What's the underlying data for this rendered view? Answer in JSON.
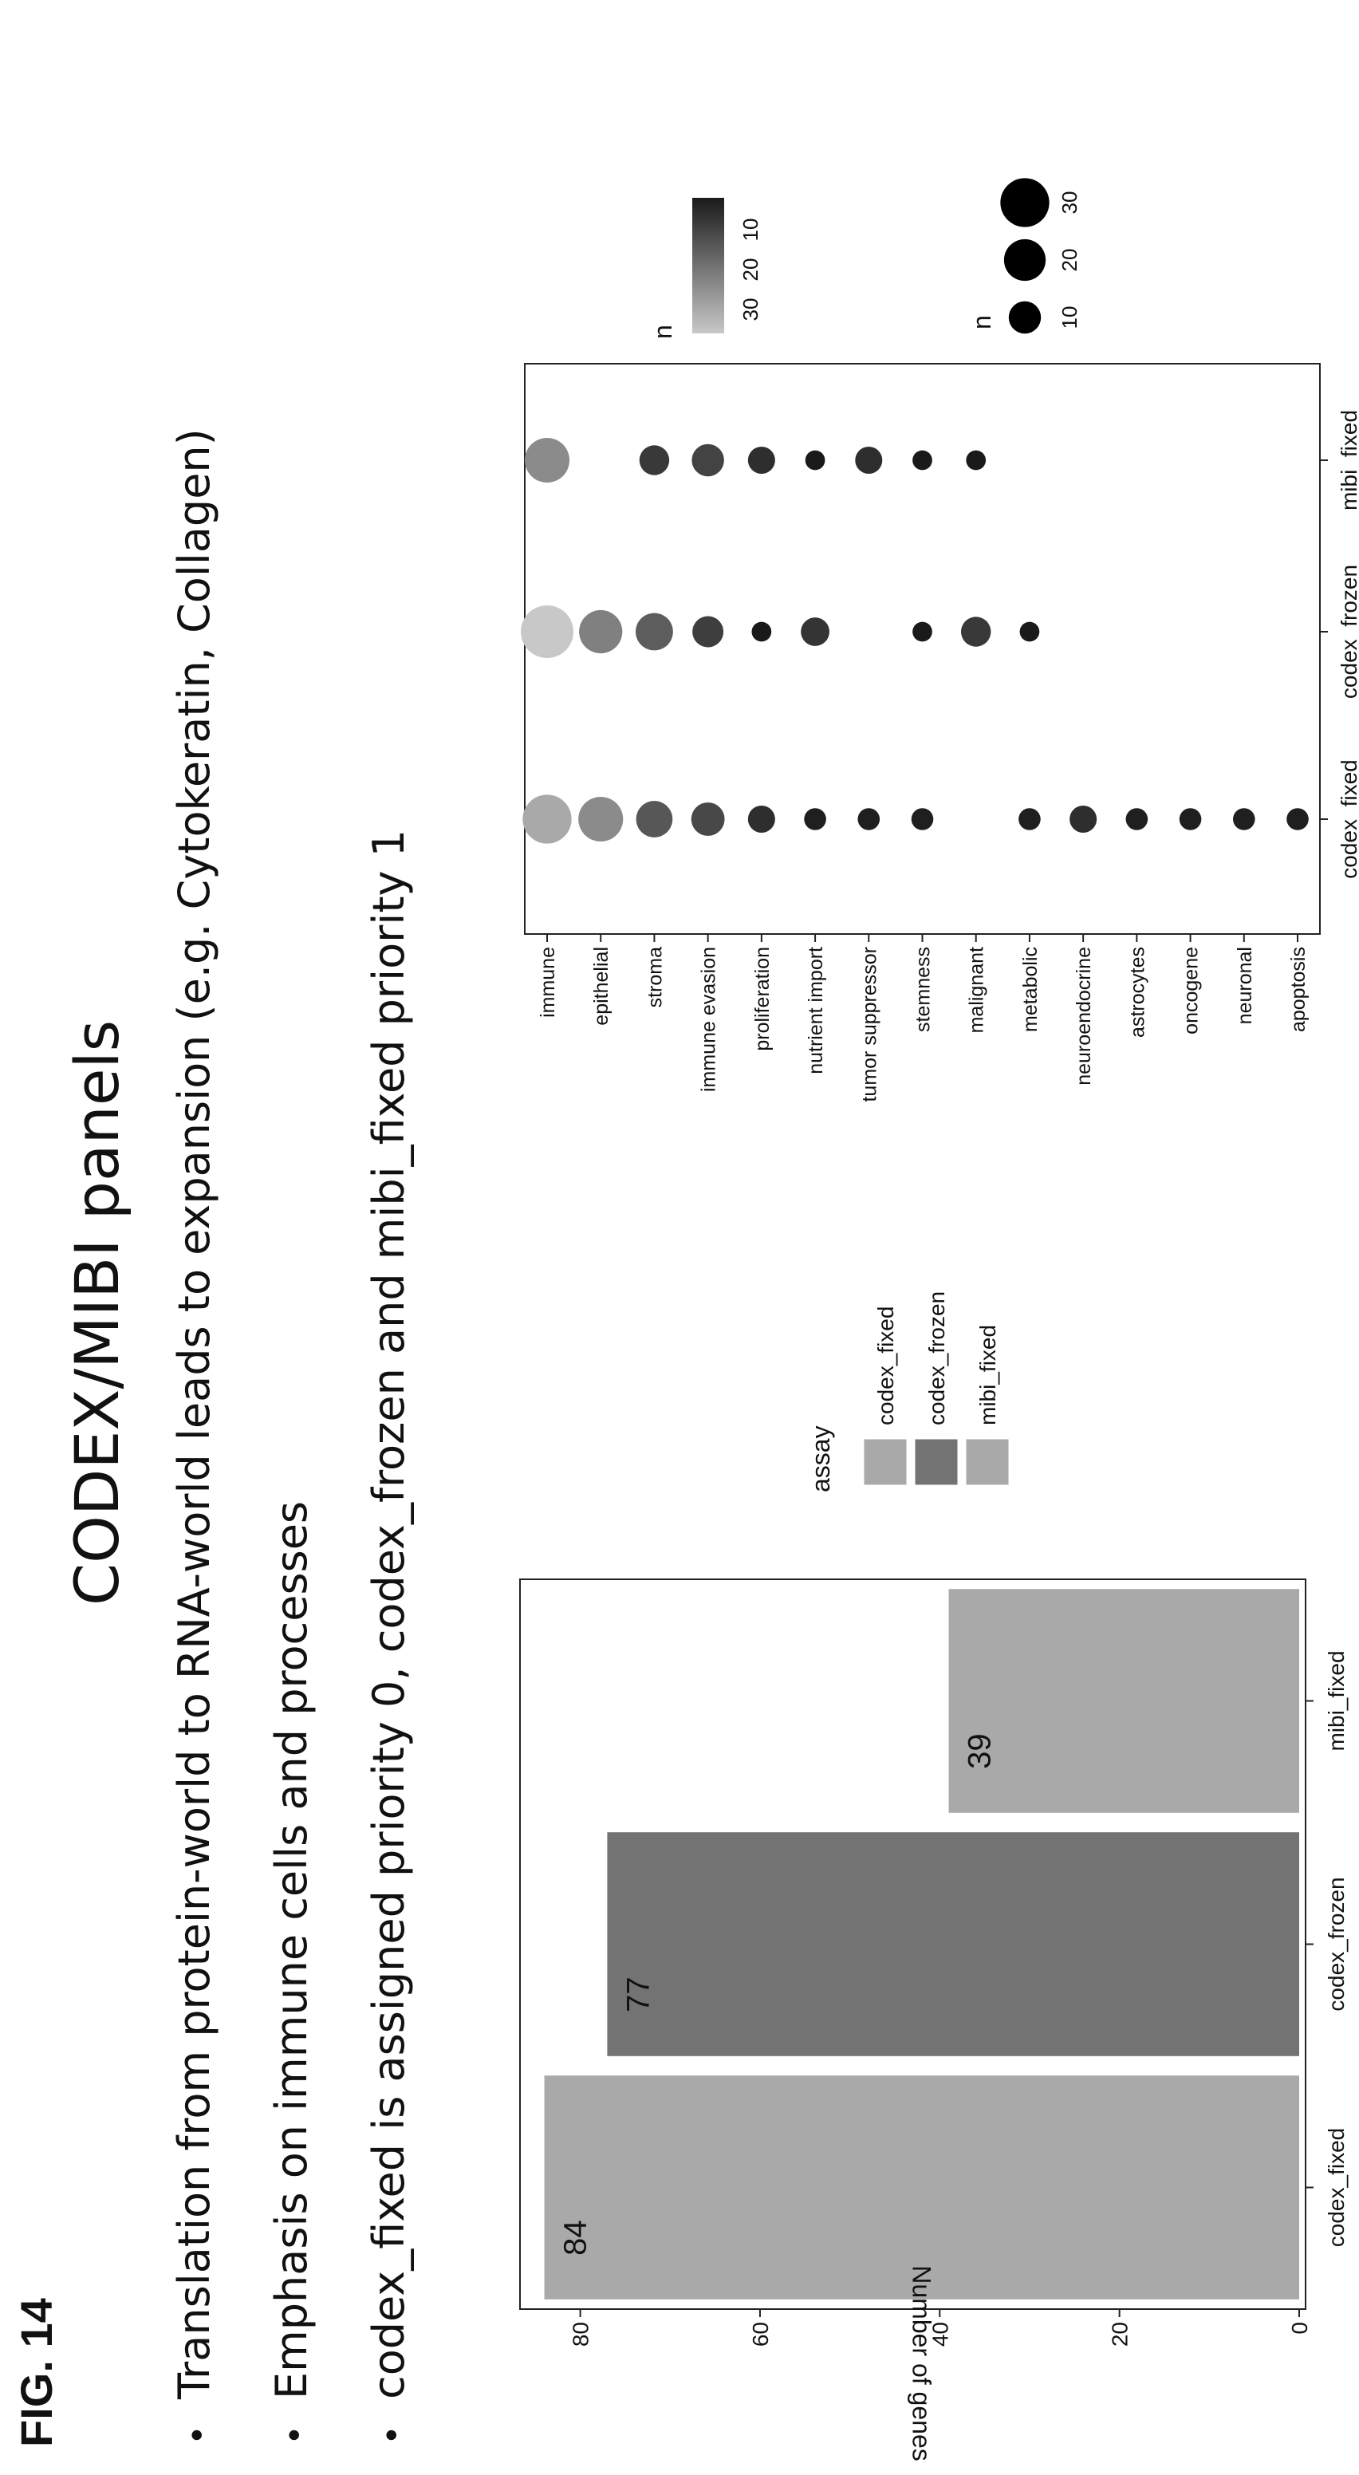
{
  "figure": {
    "label": "FIG. 14",
    "title": "CODEX/MIBI panels",
    "bullets": [
      "Translation from protein-world to RNA-world leads to expansion (e.g. Cytokeratin, Collagen)",
      "Emphasis on immune cells and processes",
      "codex_fixed is assigned priority 0, codex_frozen and mibi_fixed priority 1"
    ]
  },
  "chart_data": [
    {
      "type": "bar",
      "categories": [
        "codex_fixed",
        "codex_frozen",
        "mibi_fixed"
      ],
      "values": [
        84,
        77,
        39
      ],
      "data_labels": [
        "84",
        "77",
        "39"
      ],
      "ylabel": "Number of genes",
      "ylim": [
        0,
        86
      ],
      "yticks": [
        0,
        20,
        40,
        60,
        80
      ],
      "ytick_labels": [
        "0",
        "20",
        "40",
        "60",
        "80"
      ],
      "colors": [
        "#a9a9a9",
        "#737373",
        "#a9a9a9"
      ],
      "legend": {
        "title": "assay",
        "entries": [
          "codex_fixed",
          "codex_frozen",
          "mibi_fixed"
        ],
        "colors": [
          "#a9a9a9",
          "#737373",
          "#a9a9a9"
        ],
        "placement": "right"
      }
    },
    {
      "type": "scatter",
      "x_categories": [
        "codex_fixed",
        "codex_frozen",
        "mibi_fixed"
      ],
      "y_categories": [
        "immune",
        "epithelial",
        "stroma",
        "immune evasion",
        "proliferation",
        "nutrient import",
        "tumor suppressor",
        "stemness",
        "malignant",
        "metabolic",
        "neuroendocrine",
        "astrocytes",
        "oncogene",
        "neuronal",
        "apoptosis"
      ],
      "points": [
        {
          "x": "codex_fixed",
          "y": "immune",
          "n": 30
        },
        {
          "x": "codex_fixed",
          "y": "epithelial",
          "n": 24
        },
        {
          "x": "codex_fixed",
          "y": "stroma",
          "n": 14
        },
        {
          "x": "codex_fixed",
          "y": "immune evasion",
          "n": 11
        },
        {
          "x": "codex_fixed",
          "y": "proliferation",
          "n": 6
        },
        {
          "x": "codex_fixed",
          "y": "nutrient import",
          "n": 3
        },
        {
          "x": "codex_fixed",
          "y": "tumor suppressor",
          "n": 3
        },
        {
          "x": "codex_fixed",
          "y": "stemness",
          "n": 3
        },
        {
          "x": "codex_fixed",
          "y": "metabolic",
          "n": 3
        },
        {
          "x": "codex_fixed",
          "y": "neuroendocrine",
          "n": 6
        },
        {
          "x": "codex_fixed",
          "y": "astrocytes",
          "n": 3
        },
        {
          "x": "codex_fixed",
          "y": "oncogene",
          "n": 3
        },
        {
          "x": "codex_fixed",
          "y": "neuronal",
          "n": 3
        },
        {
          "x": "codex_fixed",
          "y": "apoptosis",
          "n": 3
        },
        {
          "x": "codex_frozen",
          "y": "immune",
          "n": 36
        },
        {
          "x": "codex_frozen",
          "y": "epithelial",
          "n": 22
        },
        {
          "x": "codex_frozen",
          "y": "stroma",
          "n": 15
        },
        {
          "x": "codex_frozen",
          "y": "immune evasion",
          "n": 9
        },
        {
          "x": "codex_frozen",
          "y": "proliferation",
          "n": 2
        },
        {
          "x": "codex_frozen",
          "y": "nutrient import",
          "n": 7
        },
        {
          "x": "codex_frozen",
          "y": "stemness",
          "n": 2
        },
        {
          "x": "codex_frozen",
          "y": "malignant",
          "n": 8
        },
        {
          "x": "codex_frozen",
          "y": "metabolic",
          "n": 2
        },
        {
          "x": "mibi_fixed",
          "y": "immune",
          "n": 24
        },
        {
          "x": "mibi_fixed",
          "y": "stroma",
          "n": 8
        },
        {
          "x": "mibi_fixed",
          "y": "immune evasion",
          "n": 10
        },
        {
          "x": "mibi_fixed",
          "y": "proliferation",
          "n": 6
        },
        {
          "x": "mibi_fixed",
          "y": "nutrient import",
          "n": 2
        },
        {
          "x": "mibi_fixed",
          "y": "tumor suppressor",
          "n": 6
        },
        {
          "x": "mibi_fixed",
          "y": "stemness",
          "n": 2
        },
        {
          "x": "mibi_fixed",
          "y": "malignant",
          "n": 2
        }
      ],
      "color_legend": {
        "title": "n",
        "ticks": [
          30,
          20,
          10
        ],
        "tick_labels": [
          "30",
          "20",
          "10"
        ],
        "low_color": "#1a1a1a",
        "high_color": "#c8c8c8",
        "range": [
          2,
          36
        ]
      },
      "size_legend": {
        "title": "n",
        "ticks": [
          10,
          20,
          30
        ],
        "tick_labels": [
          "10",
          "20",
          "30"
        ],
        "color": "#000000"
      }
    }
  ]
}
